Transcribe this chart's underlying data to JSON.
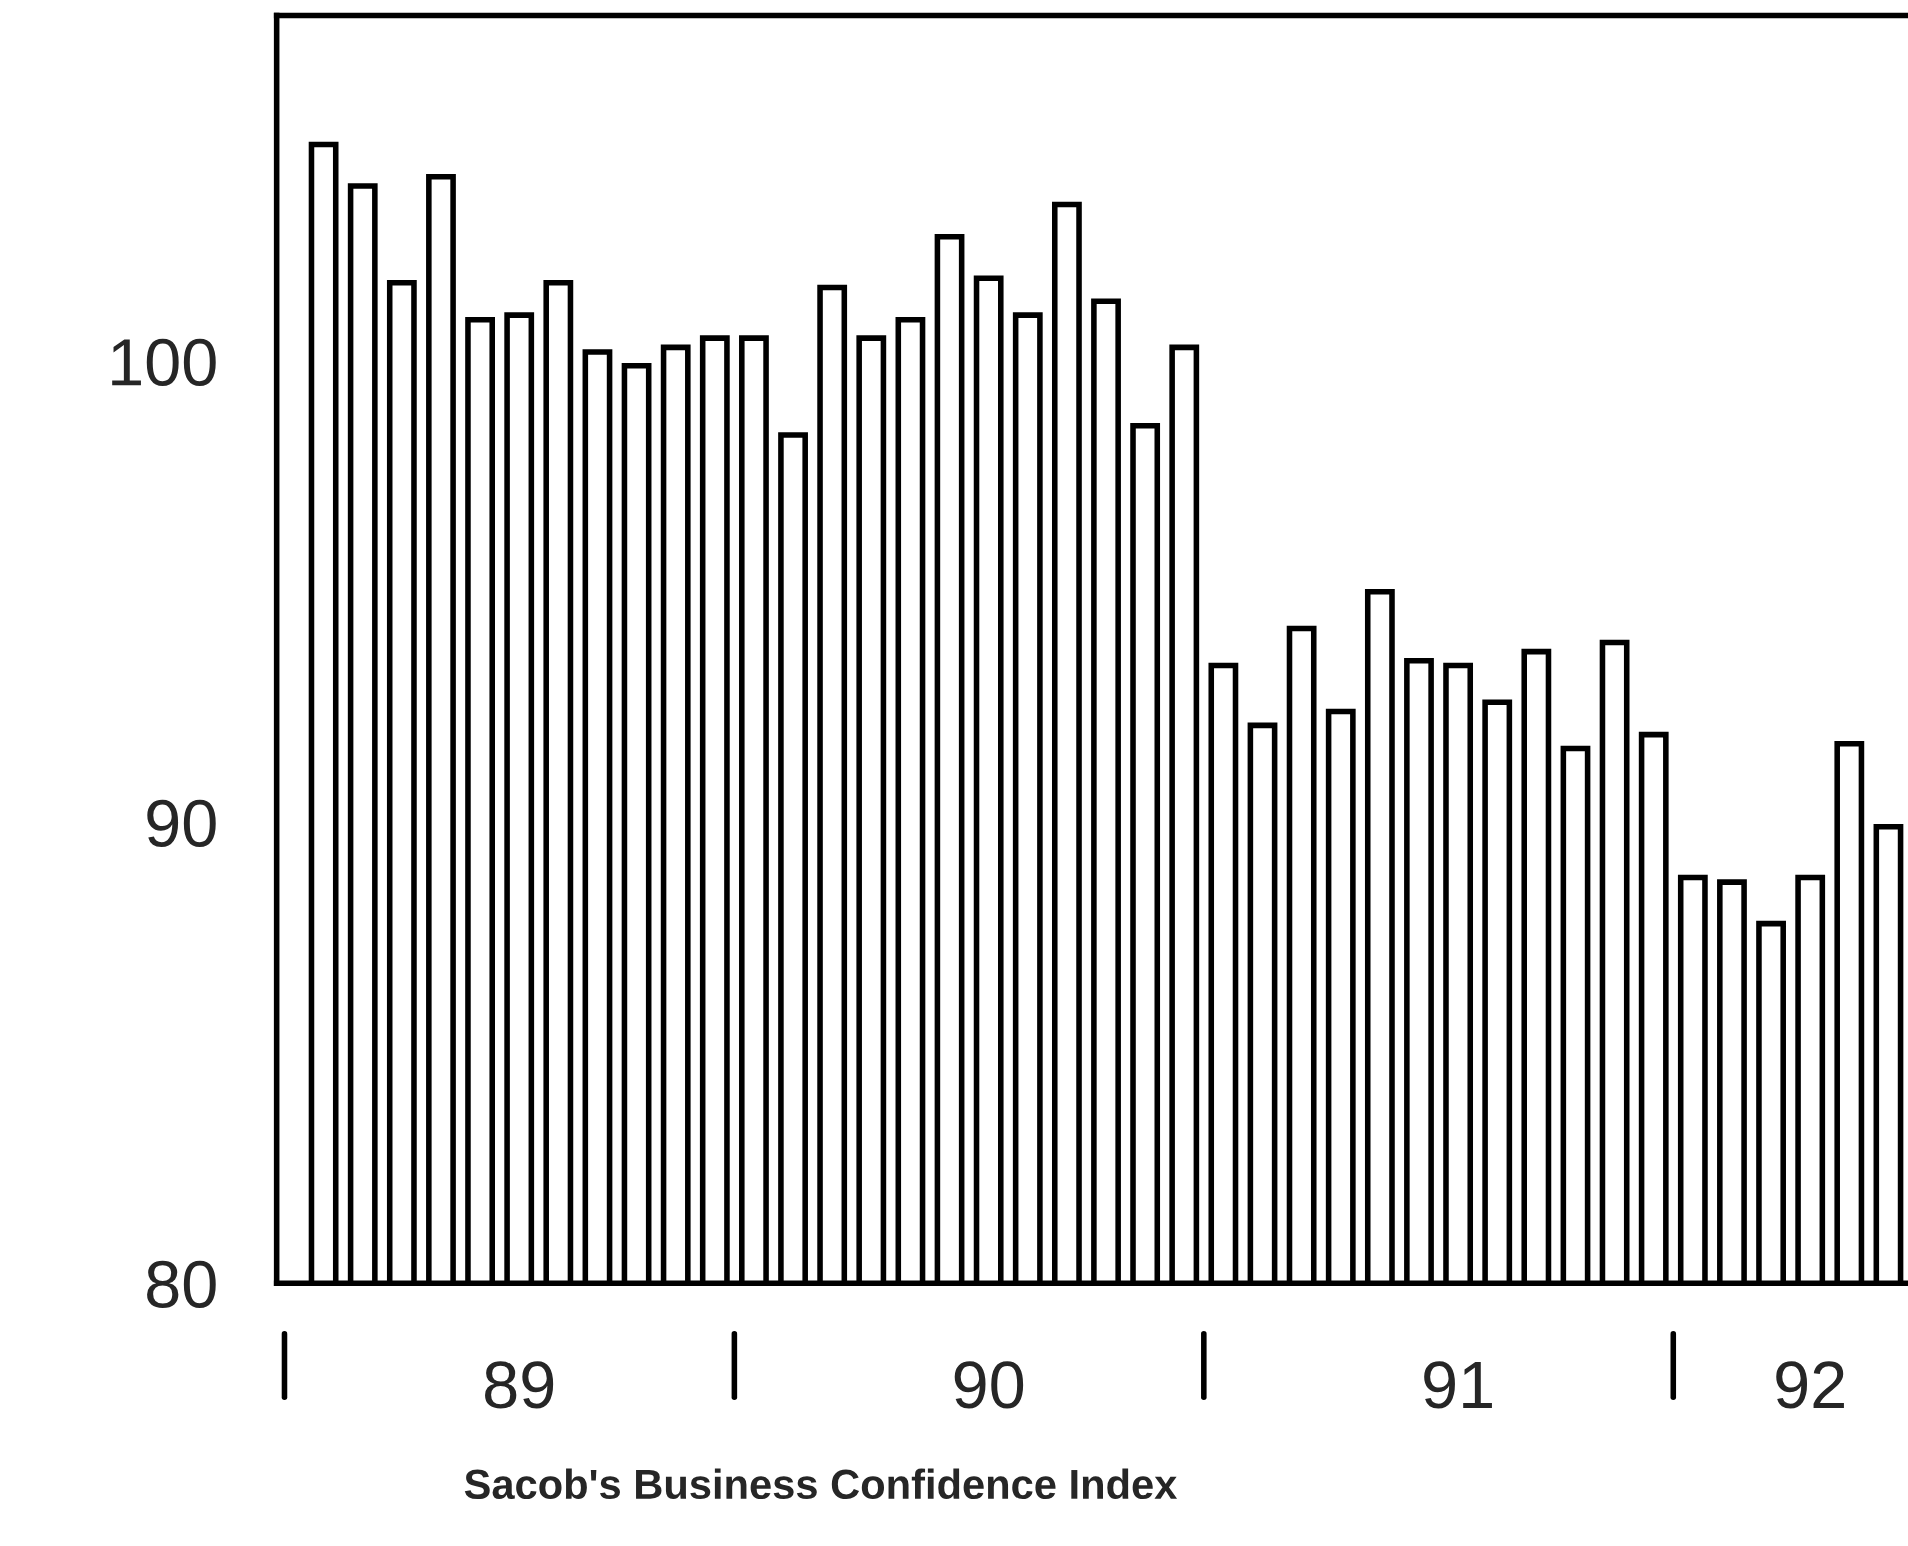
{
  "chart_data": {
    "type": "bar",
    "title": "Sacob's Business Confidence Index",
    "categories": [
      null,
      null,
      null,
      null,
      null,
      "89",
      null,
      null,
      null,
      null,
      null,
      null,
      null,
      null,
      null,
      null,
      null,
      "90",
      null,
      null,
      null,
      null,
      null,
      null,
      null,
      null,
      null,
      null,
      null,
      "91",
      null,
      null,
      null,
      null,
      null,
      null,
      null,
      null,
      "92",
      null,
      null
    ],
    "values": [
      104.7,
      103.8,
      101.7,
      104.0,
      100.9,
      101.0,
      101.7,
      100.2,
      99.9,
      100.3,
      100.5,
      100.5,
      98.4,
      101.6,
      100.5,
      100.9,
      102.7,
      101.8,
      101.0,
      103.4,
      101.3,
      98.6,
      100.3,
      93.4,
      92.1,
      94.2,
      92.4,
      95.0,
      93.5,
      93.4,
      92.6,
      93.7,
      91.6,
      93.9,
      91.9,
      88.8,
      88.7,
      87.8,
      88.8,
      91.7,
      89.9
    ],
    "color": "#ffffff",
    "ylim": [
      80,
      107.5
    ],
    "yticks": [
      80,
      90,
      100
    ],
    "grid": false,
    "legend": false
  }
}
